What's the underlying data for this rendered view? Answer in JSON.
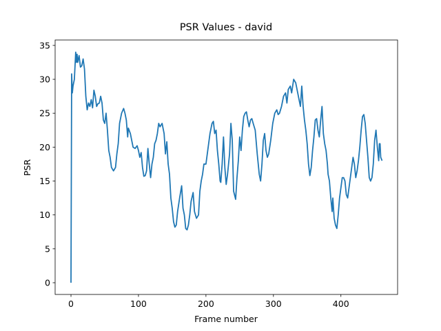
{
  "chart_data": {
    "type": "line",
    "title": "PSR Values - david",
    "x_label": "Frame number",
    "y_label": "PSR",
    "color": "#1f77b4",
    "x": [
      0,
      1,
      2,
      3,
      5,
      7,
      8,
      9,
      10,
      12,
      14,
      16,
      18,
      20,
      22,
      24,
      26,
      28,
      30,
      32,
      34,
      36,
      38,
      40,
      42,
      44,
      46,
      48,
      50,
      52,
      54,
      56,
      58,
      60,
      63,
      66,
      68,
      70,
      72,
      75,
      78,
      80,
      82,
      84,
      85,
      88,
      90,
      92,
      95,
      98,
      100,
      102,
      104,
      106,
      108,
      110,
      112,
      114,
      116,
      118,
      120,
      122,
      124,
      126,
      128,
      130,
      132,
      135,
      138,
      140,
      142,
      144,
      146,
      148,
      150,
      152,
      154,
      156,
      158,
      161,
      164,
      166,
      168,
      170,
      172,
      174,
      176,
      178,
      181,
      183,
      186,
      189,
      191,
      193,
      195,
      197,
      200,
      202,
      204,
      206,
      209,
      211,
      213,
      215,
      217,
      219,
      221,
      222,
      224,
      226,
      228,
      230,
      232,
      235,
      237,
      239,
      241,
      244,
      246,
      248,
      250,
      252,
      254,
      256,
      258,
      260,
      262,
      264,
      266,
      268,
      270,
      273,
      276,
      279,
      281,
      283,
      285,
      287,
      289,
      291,
      293,
      296,
      299,
      302,
      305,
      307,
      309,
      312,
      315,
      318,
      320,
      322,
      325,
      327,
      330,
      333,
      336,
      338,
      340,
      342,
      344,
      346,
      348,
      350,
      352,
      354,
      356,
      358,
      360,
      362,
      364,
      366,
      368,
      370,
      372,
      374,
      376,
      378,
      380,
      381,
      383,
      385,
      387,
      388,
      390,
      392,
      394,
      396,
      398,
      400,
      402,
      404,
      406,
      408,
      410,
      412,
      414,
      416,
      418,
      420,
      422,
      424,
      426,
      428,
      430,
      432,
      434,
      436,
      438,
      440,
      442,
      444,
      446,
      448,
      450,
      452,
      454,
      456,
      457,
      458,
      459,
      461
    ],
    "values": [
      0,
      30.8,
      28,
      29,
      30,
      34,
      32.5,
      33.7,
      32.5,
      33.5,
      31.8,
      32,
      33,
      31.5,
      27.5,
      25.5,
      26.5,
      26,
      27,
      25.8,
      28.4,
      27.5,
      26,
      26.4,
      26.5,
      27.5,
      26.5,
      24,
      23.5,
      25,
      22.5,
      19.5,
      18.5,
      17,
      16.5,
      17,
      19,
      20.5,
      23.5,
      25,
      25.7,
      25,
      24,
      21.5,
      22.8,
      22,
      21,
      20,
      19.8,
      20.2,
      19.5,
      18.5,
      19.2,
      17,
      15.7,
      15.8,
      16.5,
      19.8,
      17.5,
      15.5,
      17.5,
      18.5,
      20.5,
      21,
      22,
      23.5,
      23,
      23.5,
      22,
      19,
      20.8,
      17.5,
      16,
      12.5,
      11,
      9,
      8.2,
      8.5,
      10.5,
      12.5,
      14.3,
      11,
      10,
      8,
      7.8,
      8.5,
      10,
      12,
      13.3,
      10.5,
      9.5,
      10,
      13.5,
      15,
      16,
      17.5,
      17.5,
      19,
      20.5,
      22,
      23.5,
      23.8,
      22,
      22.5,
      19.5,
      17.5,
      15,
      14.8,
      17.5,
      21.5,
      17,
      14.5,
      16,
      19,
      23.5,
      21,
      13.5,
      12.3,
      15.5,
      18,
      21.5,
      19.5,
      22.5,
      24.5,
      25,
      25.2,
      24,
      23,
      24,
      24.2,
      23.5,
      22.5,
      19,
      16,
      15,
      17.5,
      21,
      22,
      19.5,
      18.5,
      19,
      21,
      23.5,
      25,
      25.5,
      24.8,
      25,
      26,
      27.5,
      28,
      26.5,
      28.5,
      29,
      28,
      30,
      29.5,
      28,
      27,
      26,
      29,
      26,
      24,
      22.5,
      20.5,
      17.5,
      15.8,
      17,
      19.5,
      21.5,
      24,
      24.2,
      22.5,
      21.5,
      24,
      26,
      22,
      20.5,
      19.5,
      17.5,
      16,
      15,
      12.5,
      10.5,
      12.5,
      9.5,
      8.5,
      8,
      10,
      12.5,
      14,
      15.5,
      15.5,
      15,
      13,
      12.5,
      14,
      15.5,
      17,
      18.5,
      17.5,
      15.5,
      16.5,
      18,
      20,
      22.5,
      24.5,
      24.8,
      23.5,
      21,
      18.5,
      15.5,
      15,
      15.5,
      17.5,
      21,
      22.5,
      20,
      18,
      20.5,
      20.5,
      18.5,
      18
    ],
    "xlim": [
      -23.5,
      484
    ],
    "xticks": [
      0,
      100,
      200,
      300,
      400
    ],
    "ylim": [
      -1.73,
      35.8
    ],
    "yticks": [
      0,
      5,
      10,
      15,
      20,
      25,
      30,
      35
    ]
  }
}
